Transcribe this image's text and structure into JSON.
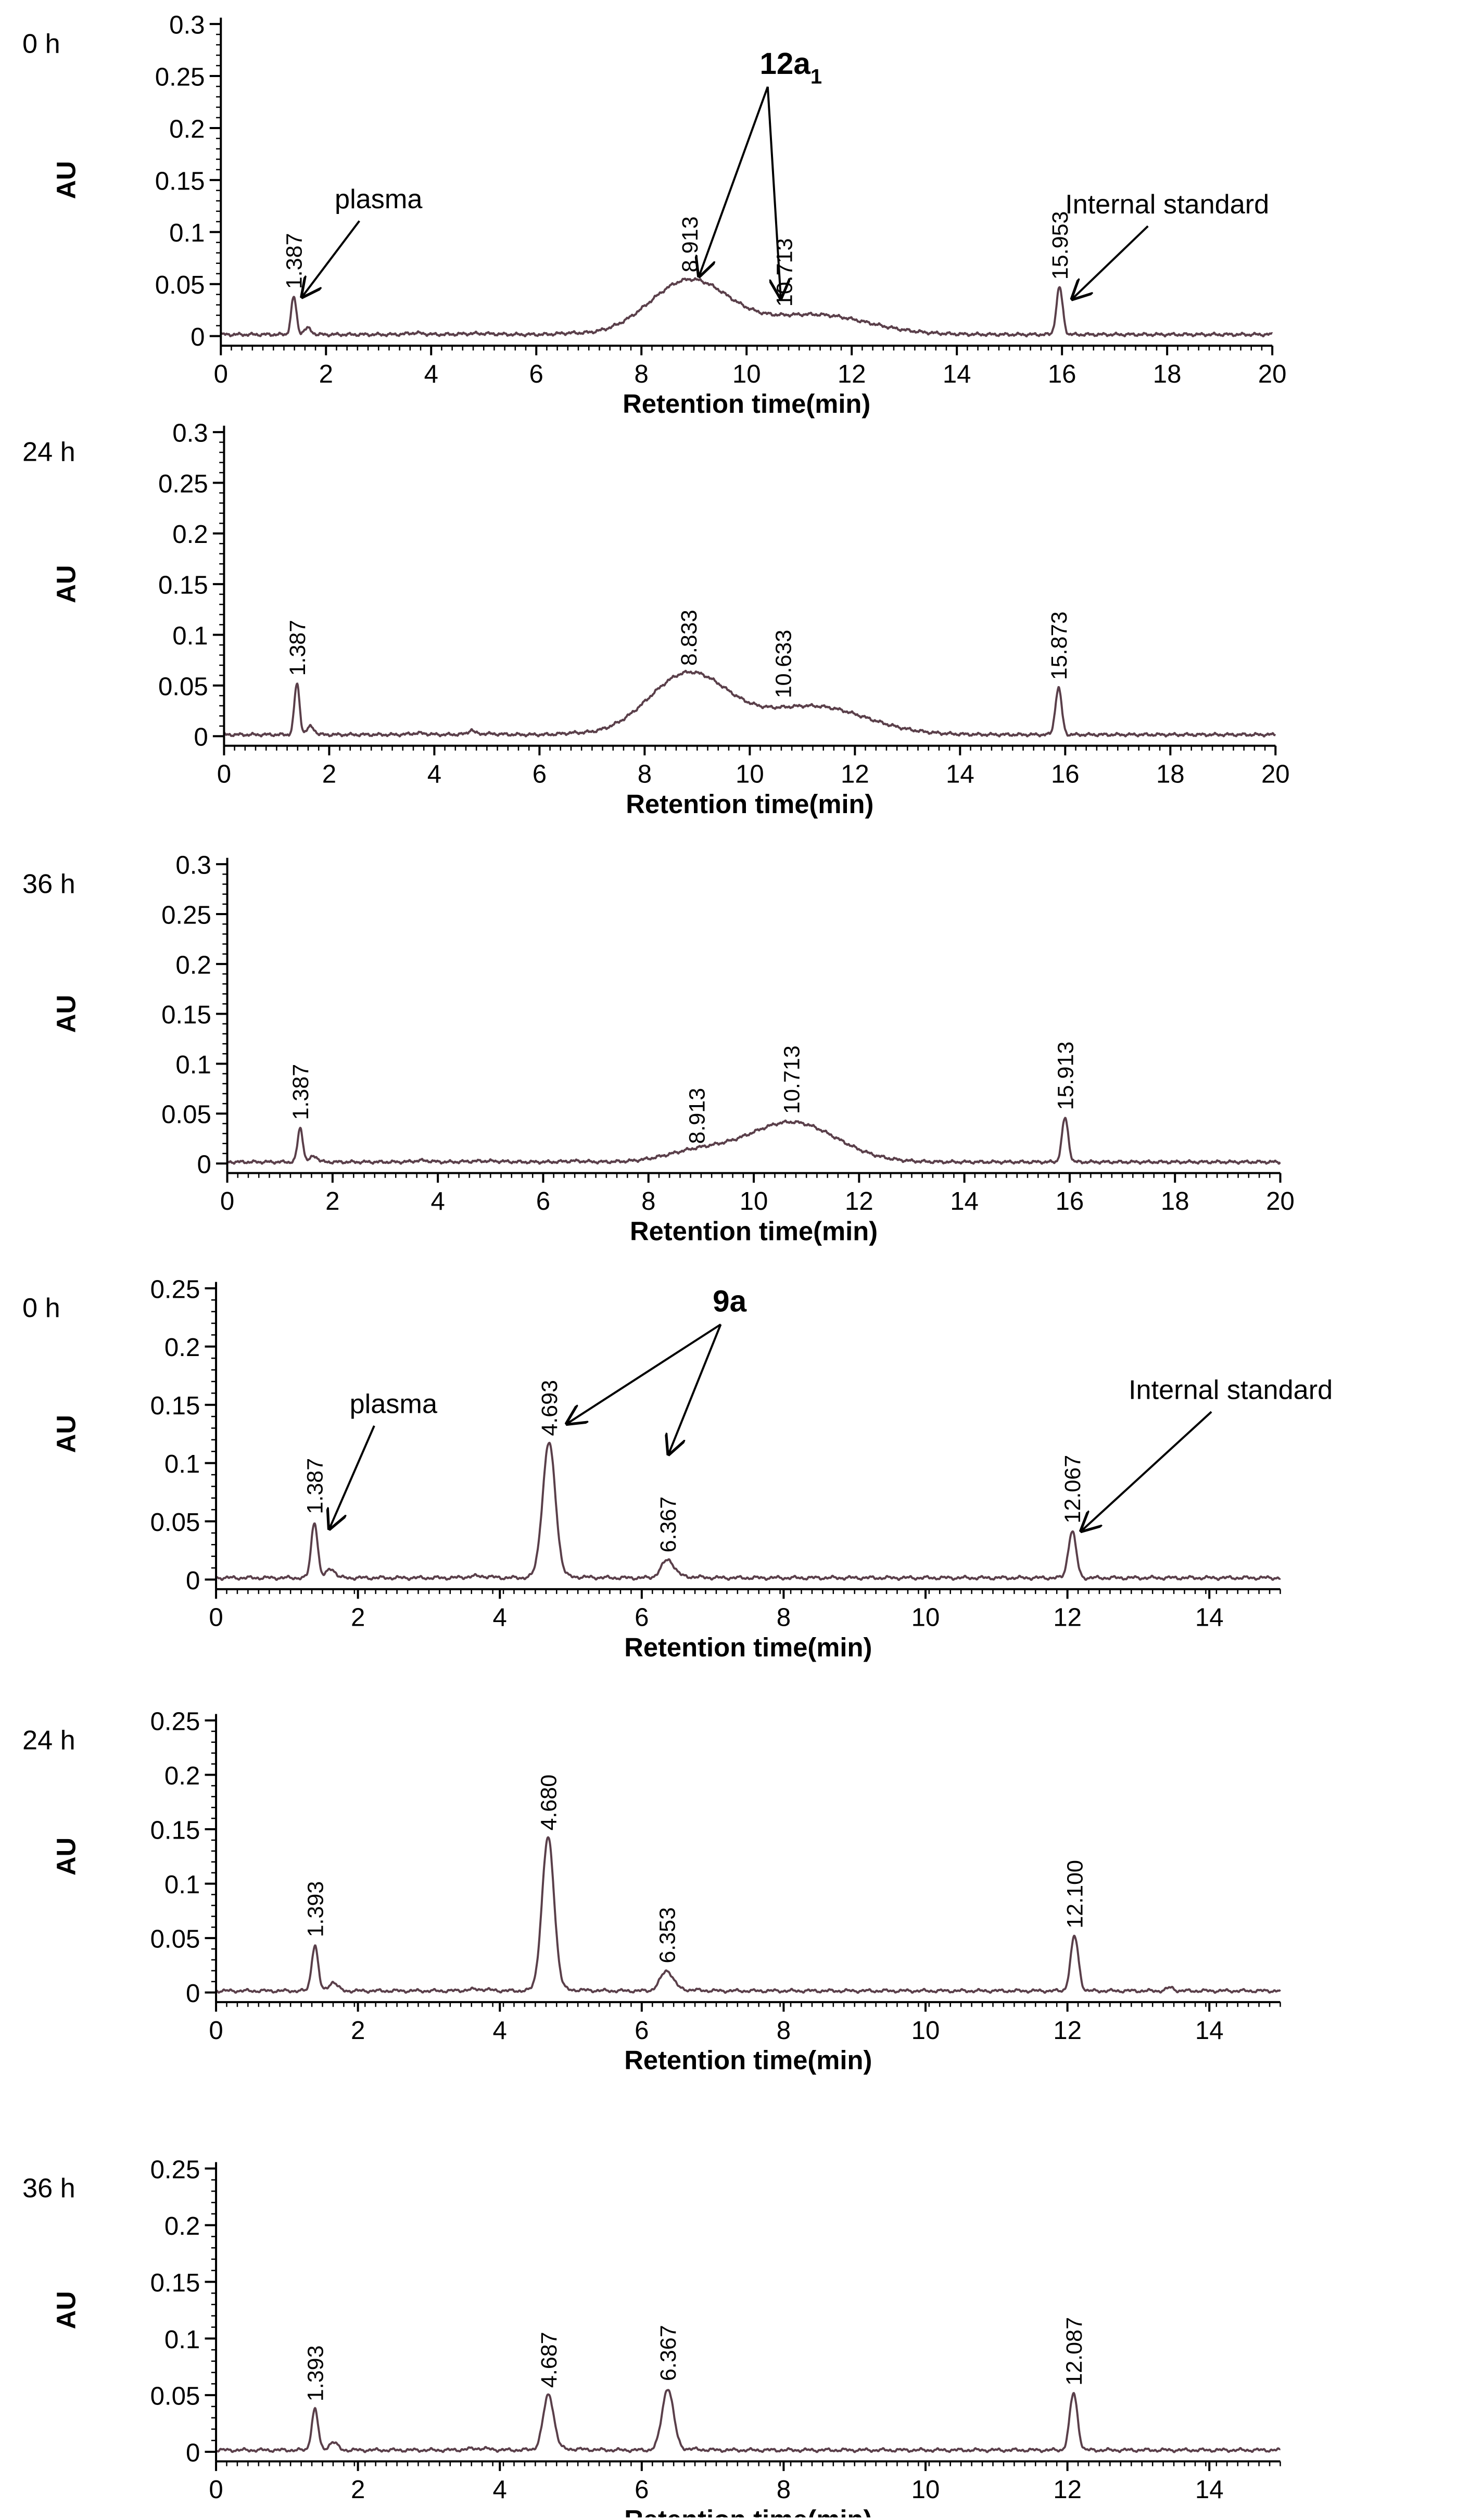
{
  "chart_data": [
    {
      "type": "line",
      "time_label": "0 h",
      "xlabel": "Retention time(min)",
      "ylabel": "AU",
      "xlim": [
        0,
        20
      ],
      "ylim": [
        0,
        0.3
      ],
      "x_ticks": [
        0,
        2,
        4,
        6,
        8,
        10,
        12,
        14,
        16,
        18,
        20
      ],
      "y_ticks": [
        0,
        0.05,
        0.1,
        0.15,
        0.2,
        0.25,
        0.3
      ],
      "y_tick_labels": [
        "0",
        "0.05",
        "0.1",
        "0.15",
        "0.2",
        "0.25",
        "0.3"
      ],
      "peaks": [
        {
          "rt": 1.387,
          "height": 0.036,
          "width": 0.05,
          "label": "1.387"
        },
        {
          "rt": 1.65,
          "height": 0.006,
          "width": 0.07,
          "label": ""
        },
        {
          "rt": 8.913,
          "height": 0.052,
          "width": 0.75,
          "label": "8.913"
        },
        {
          "rt": 11.3,
          "height": 0.019,
          "width": 1.0,
          "label": "10.713",
          "label_rt": 10.713
        },
        {
          "rt": 15.953,
          "height": 0.045,
          "width": 0.06,
          "label": "15.953"
        }
      ],
      "annotations": [
        {
          "text": "plasma",
          "x": 3.0,
          "y": 0.123,
          "target_x": 1.55,
          "target_y": 0.038
        },
        {
          "text": "Internal standard",
          "x": 18.0,
          "y": 0.118,
          "target_x": 16.2,
          "target_y": 0.036
        }
      ],
      "compound": {
        "text": "12a",
        "subscript": "1",
        "x": 10.25,
        "y": 0.252,
        "targets": [
          [
            9.1,
            0.058
          ],
          [
            10.65,
            0.037
          ]
        ]
      }
    },
    {
      "type": "line",
      "time_label": "24 h",
      "xlabel": "Retention time(min)",
      "ylabel": "AU",
      "xlim": [
        0,
        20
      ],
      "ylim": [
        0,
        0.3
      ],
      "x_ticks": [
        0,
        2,
        4,
        6,
        8,
        10,
        12,
        14,
        16,
        18,
        20
      ],
      "y_ticks": [
        0,
        0.05,
        0.1,
        0.15,
        0.2,
        0.25,
        0.3
      ],
      "y_tick_labels": [
        "0",
        "0.05",
        "0.1",
        "0.15",
        "0.2",
        "0.25",
        "0.3"
      ],
      "peaks": [
        {
          "rt": 1.387,
          "height": 0.05,
          "width": 0.05,
          "label": "1.387"
        },
        {
          "rt": 1.65,
          "height": 0.008,
          "width": 0.07,
          "label": ""
        },
        {
          "rt": 4.7,
          "height": 0.004,
          "width": 0.05,
          "label": ""
        },
        {
          "rt": 8.833,
          "height": 0.06,
          "width": 0.75,
          "label": "8.833"
        },
        {
          "rt": 11.2,
          "height": 0.028,
          "width": 1.0,
          "label": "10.633",
          "label_rt": 10.633
        },
        {
          "rt": 15.873,
          "height": 0.046,
          "width": 0.06,
          "label": "15.873"
        }
      ],
      "annotations": []
    },
    {
      "type": "line",
      "time_label": "36 h",
      "xlabel": "Retention time(min)",
      "ylabel": "AU",
      "xlim": [
        0,
        20
      ],
      "ylim": [
        0,
        0.3
      ],
      "x_ticks": [
        0,
        2,
        4,
        6,
        8,
        10,
        12,
        14,
        16,
        18,
        20
      ],
      "y_ticks": [
        0,
        0.05,
        0.1,
        0.15,
        0.2,
        0.25,
        0.3
      ],
      "y_tick_labels": [
        "0",
        "0.05",
        "0.1",
        "0.15",
        "0.2",
        "0.25",
        "0.3"
      ],
      "peaks": [
        {
          "rt": 1.387,
          "height": 0.034,
          "width": 0.05,
          "label": "1.387"
        },
        {
          "rt": 1.65,
          "height": 0.006,
          "width": 0.07,
          "label": ""
        },
        {
          "rt": 8.913,
          "height": 0.01,
          "width": 0.6,
          "label": "8.913"
        },
        {
          "rt": 10.713,
          "height": 0.04,
          "width": 0.85,
          "label": "10.713"
        },
        {
          "rt": 15.913,
          "height": 0.044,
          "width": 0.06,
          "label": "15.913"
        }
      ],
      "annotations": []
    },
    {
      "type": "line",
      "time_label": "0 h",
      "xlabel": "Retention time(min)",
      "ylabel": "AU",
      "xlim": [
        0,
        15
      ],
      "ylim": [
        0,
        0.25
      ],
      "x_ticks": [
        0,
        2,
        4,
        6,
        8,
        10,
        12,
        14
      ],
      "y_ticks": [
        0,
        0.05,
        0.1,
        0.15,
        0.2,
        0.25
      ],
      "y_tick_labels": [
        "0",
        "0.05",
        "0.1",
        "0.15",
        "0.2",
        "0.25"
      ],
      "peaks": [
        {
          "rt": 1.387,
          "height": 0.048,
          "width": 0.045,
          "label": "1.387"
        },
        {
          "rt": 1.62,
          "height": 0.008,
          "width": 0.06,
          "label": ""
        },
        {
          "rt": 4.693,
          "height": 0.115,
          "width": 0.09,
          "label": "4.693"
        },
        {
          "rt": 6.367,
          "height": 0.015,
          "width": 0.09,
          "label": "6.367"
        },
        {
          "rt": 12.067,
          "height": 0.04,
          "width": 0.055,
          "label": "12.067"
        }
      ],
      "annotations": [
        {
          "text": "plasma",
          "x": 2.5,
          "y": 0.143,
          "target_x": 1.6,
          "target_y": 0.044
        },
        {
          "text": "Internal standard",
          "x": 14.3,
          "y": 0.155,
          "target_x": 12.2,
          "target_y": 0.042
        }
      ],
      "compound": {
        "text": "9a",
        "subscript": "",
        "x": 7.0,
        "y": 0.23,
        "targets": [
          [
            4.95,
            0.134
          ],
          [
            6.38,
            0.108
          ]
        ]
      }
    },
    {
      "type": "line",
      "time_label": "24 h",
      "xlabel": "Retention time(min)",
      "ylabel": "AU",
      "xlim": [
        0,
        15
      ],
      "ylim": [
        0,
        0.25
      ],
      "x_ticks": [
        0,
        2,
        4,
        6,
        8,
        10,
        12,
        14
      ],
      "y_ticks": [
        0,
        0.05,
        0.1,
        0.15,
        0.2,
        0.25
      ],
      "y_tick_labels": [
        "0",
        "0.05",
        "0.1",
        "0.15",
        "0.2",
        "0.25"
      ],
      "peaks": [
        {
          "rt": 1.393,
          "height": 0.042,
          "width": 0.045,
          "label": "1.393"
        },
        {
          "rt": 1.65,
          "height": 0.008,
          "width": 0.06,
          "label": ""
        },
        {
          "rt": 4.68,
          "height": 0.14,
          "width": 0.085,
          "label": "4.680"
        },
        {
          "rt": 6.353,
          "height": 0.018,
          "width": 0.09,
          "label": "6.353"
        },
        {
          "rt": 12.1,
          "height": 0.05,
          "width": 0.055,
          "label": "12.100"
        },
        {
          "rt": 13.45,
          "height": 0.003,
          "width": 0.05,
          "label": ""
        }
      ],
      "annotations": []
    },
    {
      "type": "line",
      "time_label": "36 h",
      "xlabel": "Retention time(min)",
      "ylabel": "AU",
      "xlim": [
        0,
        15
      ],
      "ylim": [
        0,
        0.25
      ],
      "x_ticks": [
        0,
        2,
        4,
        6,
        8,
        10,
        12,
        14
      ],
      "y_ticks": [
        0,
        0.05,
        0.1,
        0.15,
        0.2,
        0.25
      ],
      "y_tick_labels": [
        "0",
        "0.05",
        "0.1",
        "0.15",
        "0.2",
        "0.25"
      ],
      "peaks": [
        {
          "rt": 1.393,
          "height": 0.036,
          "width": 0.045,
          "label": "1.393"
        },
        {
          "rt": 1.65,
          "height": 0.007,
          "width": 0.06,
          "label": ""
        },
        {
          "rt": 4.687,
          "height": 0.048,
          "width": 0.075,
          "label": "4.687"
        },
        {
          "rt": 6.367,
          "height": 0.054,
          "width": 0.08,
          "label": "6.367"
        },
        {
          "rt": 12.087,
          "height": 0.05,
          "width": 0.055,
          "label": "12.087"
        }
      ],
      "annotations": []
    }
  ]
}
